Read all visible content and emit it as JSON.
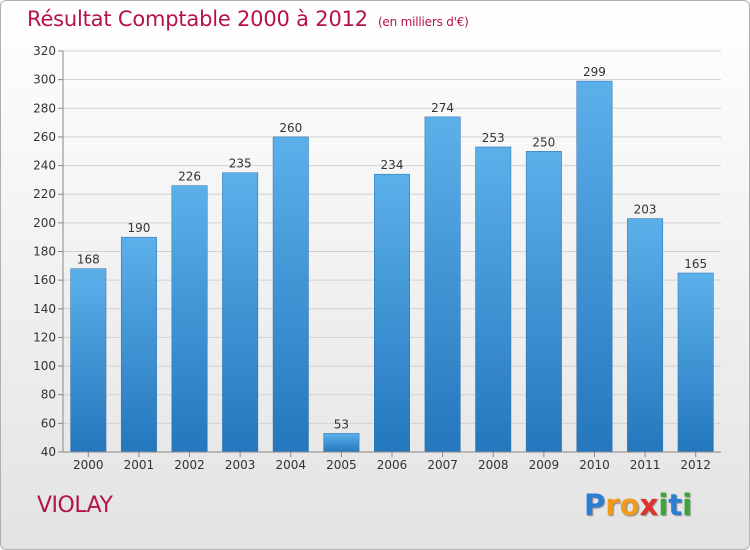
{
  "chart_data": {
    "type": "bar",
    "title": "Résultat Comptable 2000 à 2012",
    "subtitle": "(en milliers d'€)",
    "xlabel": "",
    "ylabel": "",
    "categories": [
      "2000",
      "2001",
      "2002",
      "2003",
      "2004",
      "2005",
      "2006",
      "2007",
      "2008",
      "2009",
      "2010",
      "2011",
      "2012"
    ],
    "values": [
      168,
      190,
      226,
      235,
      260,
      53,
      234,
      274,
      253,
      250,
      299,
      203,
      165
    ],
    "ylim": [
      40,
      320
    ],
    "yticks": [
      40,
      60,
      80,
      100,
      120,
      140,
      160,
      180,
      200,
      220,
      240,
      260,
      280,
      300,
      320
    ],
    "grid": true,
    "bar_color": "#3a8fd6",
    "title_color": "#b5124d"
  },
  "footer": {
    "place": "VIOLAY",
    "logo_letters": [
      "P",
      "r",
      "o",
      "x",
      "i",
      "t",
      "i"
    ],
    "logo_colors": [
      "#2a7fd4",
      "#f29a1b",
      "#f29a1b",
      "#e0302d",
      "#3aa63a",
      "#2a7fd4",
      "#3aa63a"
    ]
  }
}
